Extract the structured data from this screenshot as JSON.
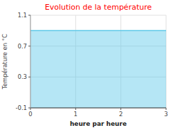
{
  "chart_data": {
    "type": "area",
    "title": "Evolution de la température",
    "x_label": "heure par heure",
    "y_label": "Température en °C",
    "x": [
      0,
      3
    ],
    "values": [
      0.9,
      0.9
    ],
    "color": "#5bc8e8",
    "xlim": [
      0,
      3
    ],
    "ylim": [
      -0.1,
      1.1
    ],
    "xticks": [
      0,
      1,
      2,
      3
    ],
    "yticks": [
      -0.1,
      0.3,
      0.7,
      1.1
    ],
    "grid": true
  }
}
